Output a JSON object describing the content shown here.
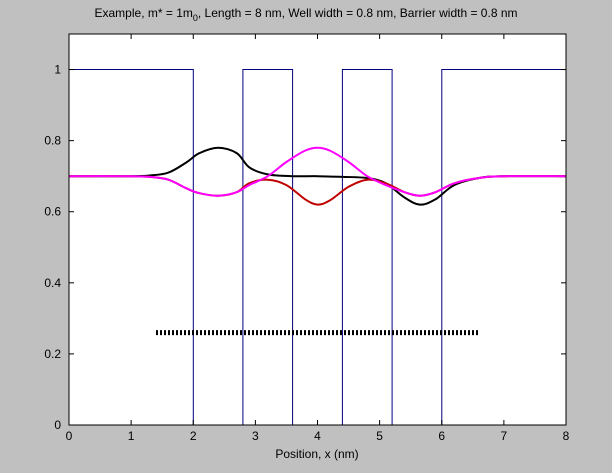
{
  "chart_data": {
    "type": "line",
    "title": {
      "before_sub": "Example, m* = 1m",
      "sub": "0",
      "after_sub": ", Length = 8 nm, Well width = 0.8 nm, Barrier width = 0.8 nm"
    },
    "xlabel": "Position, x (nm)",
    "ylabel": "",
    "xlim": [
      0,
      8
    ],
    "ylim": [
      0,
      1.1
    ],
    "x_ticks": [
      0,
      1,
      2,
      3,
      4,
      5,
      6,
      7,
      8
    ],
    "x_tick_labels": [
      "0",
      "1",
      "2",
      "3",
      "4",
      "5",
      "6",
      "7",
      "8"
    ],
    "y_ticks": [
      0,
      0.2,
      0.4,
      0.6,
      0.8,
      1
    ],
    "y_tick_labels": [
      "0",
      "0.2",
      "0.4",
      "0.6",
      "0.8",
      "1"
    ],
    "grid": false,
    "series": [
      {
        "key": "potential",
        "color": "#000080",
        "style": "solid",
        "x": [
          0,
          2.0,
          2.0,
          2.8,
          2.8,
          3.6,
          3.6,
          4.4,
          4.4,
          5.2,
          5.2,
          6.0,
          6.0,
          8
        ],
        "y": [
          1,
          1,
          0,
          0,
          1,
          1,
          0,
          0,
          1,
          1,
          0,
          0,
          1,
          1
        ]
      },
      {
        "key": "state_black",
        "color": "#000000",
        "style": "solid",
        "x": [
          0,
          1.0,
          1.3,
          1.6,
          1.9,
          2.1,
          2.4,
          2.7,
          2.9,
          3.2,
          3.6,
          4.0,
          4.4,
          4.8,
          5.1,
          5.4,
          5.65,
          5.9,
          6.2,
          6.6,
          7.0,
          8
        ],
        "y": [
          0.7,
          0.7,
          0.702,
          0.71,
          0.74,
          0.765,
          0.78,
          0.765,
          0.725,
          0.705,
          0.7,
          0.7,
          0.698,
          0.695,
          0.68,
          0.64,
          0.62,
          0.635,
          0.675,
          0.695,
          0.7,
          0.7
        ]
      },
      {
        "key": "state_red",
        "color": "#c00000",
        "style": "solid",
        "x": [
          0,
          1.0,
          1.3,
          1.6,
          1.9,
          2.1,
          2.4,
          2.7,
          2.9,
          3.2,
          3.5,
          3.8,
          4.0,
          4.2,
          4.5,
          4.8,
          5.1,
          5.4,
          5.65,
          5.9,
          6.2,
          6.6,
          7.0,
          8
        ],
        "y": [
          0.7,
          0.7,
          0.698,
          0.69,
          0.665,
          0.652,
          0.645,
          0.655,
          0.68,
          0.69,
          0.675,
          0.635,
          0.62,
          0.632,
          0.67,
          0.69,
          0.68,
          0.655,
          0.645,
          0.655,
          0.68,
          0.695,
          0.7,
          0.7
        ]
      },
      {
        "key": "state_magenta",
        "color": "#ff00ff",
        "style": "solid",
        "x": [
          0,
          1.0,
          1.3,
          1.6,
          1.9,
          2.1,
          2.4,
          2.7,
          2.9,
          3.2,
          3.5,
          3.8,
          4.0,
          4.2,
          4.5,
          4.8,
          5.1,
          5.4,
          5.65,
          5.9,
          6.2,
          6.6,
          7.0,
          8
        ],
        "y": [
          0.7,
          0.7,
          0.698,
          0.69,
          0.665,
          0.652,
          0.645,
          0.655,
          0.675,
          0.7,
          0.74,
          0.772,
          0.78,
          0.772,
          0.74,
          0.7,
          0.675,
          0.655,
          0.645,
          0.655,
          0.68,
          0.695,
          0.7,
          0.7
        ]
      },
      {
        "key": "dotted_level",
        "color": "#000000",
        "style": "dotted",
        "x": [
          1.4,
          6.6
        ],
        "y": [
          0.26,
          0.26
        ]
      }
    ]
  }
}
